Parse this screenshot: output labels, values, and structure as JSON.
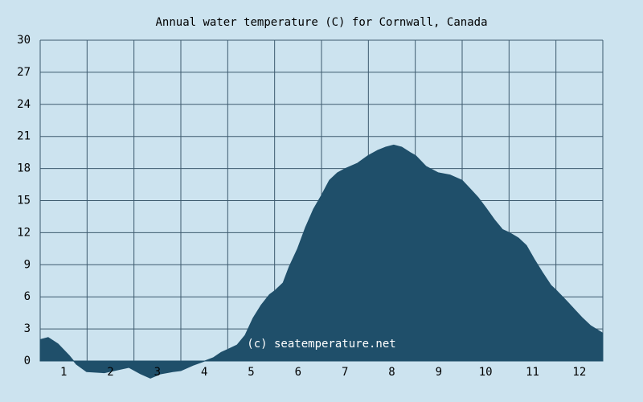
{
  "chart_data": {
    "type": "area",
    "title": "Annual water temperature (C) for Cornwall, Canada",
    "annotation": "(c) seatemperature.net",
    "x": [
      0,
      0.17,
      0.38,
      0.62,
      0.77,
      0.99,
      1.37,
      1.89,
      2.14,
      2.35,
      2.57,
      2.83,
      3.0,
      3.26,
      3.51,
      3.69,
      3.86,
      4.01,
      4.2,
      4.37,
      4.54,
      4.71,
      4.89,
      5.01,
      5.18,
      5.31,
      5.49,
      5.66,
      5.83,
      6.0,
      6.17,
      6.34,
      6.51,
      6.77,
      6.99,
      7.2,
      7.37,
      7.54,
      7.71,
      7.89,
      8.01,
      8.23,
      8.49,
      8.74,
      9.0,
      9.17,
      9.34,
      9.51,
      9.69,
      9.86,
      10.01,
      10.2,
      10.37,
      10.54,
      10.71,
      10.89,
      11.01,
      11.23,
      11.4,
      11.57,
      11.74,
      12.0
    ],
    "values": [
      2.0,
      2.2,
      1.6,
      0.5,
      -0.3,
      -1.0,
      -1.1,
      -0.6,
      -1.2,
      -1.6,
      -1.2,
      -1.0,
      -0.9,
      -0.4,
      0,
      0.3,
      0.8,
      1.1,
      1.5,
      2.4,
      4.0,
      5.2,
      6.2,
      6.6,
      7.3,
      8.8,
      10.5,
      12.5,
      14.2,
      15.5,
      16.9,
      17.6,
      18.0,
      18.5,
      19.2,
      19.7,
      20.0,
      20.2,
      20.0,
      19.5,
      19.2,
      18.2,
      17.6,
      17.4,
      16.9,
      16.1,
      15.3,
      14.3,
      13.2,
      12.3,
      12.0,
      11.5,
      10.8,
      9.5,
      8.3,
      7.1,
      6.6,
      5.6,
      4.8,
      4.0,
      3.3,
      2.6
    ],
    "color": "#1f4f6a",
    "xlim": [
      0,
      12
    ],
    "xticks": [
      {
        "value": 0.5,
        "label": "1"
      },
      {
        "value": 1.5,
        "label": "2"
      },
      {
        "value": 2.5,
        "label": "3"
      },
      {
        "value": 3.5,
        "label": "4"
      },
      {
        "value": 4.5,
        "label": "5"
      },
      {
        "value": 5.5,
        "label": "6"
      },
      {
        "value": 6.5,
        "label": "7"
      },
      {
        "value": 7.5,
        "label": "8"
      },
      {
        "value": 8.5,
        "label": "9"
      },
      {
        "value": 9.5,
        "label": "10"
      },
      {
        "value": 10.5,
        "label": "11"
      },
      {
        "value": 11.5,
        "label": "12"
      }
    ],
    "xgrid": [
      0,
      1,
      2,
      3,
      4,
      5,
      6,
      7,
      8,
      9,
      10,
      11,
      12
    ],
    "ylim": [
      0,
      30
    ],
    "yticks": [
      0,
      3,
      6,
      9,
      12,
      15,
      18,
      21,
      24,
      27,
      30
    ],
    "grid": true
  }
}
